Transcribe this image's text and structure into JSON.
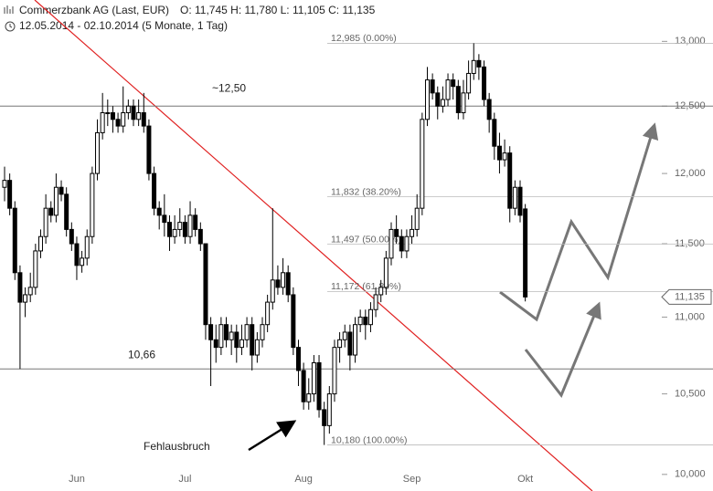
{
  "chart_data": {
    "type": "candlestick",
    "title": "Commerzbank AG (Last, EUR)",
    "quote": "O: 11,745  H: 11,780  L: 11,105  C: 11,135",
    "subtitle": "12.05.2014 - 02.10.2014 (5 Monate, 1 Tag)",
    "log_scale": true,
    "ylim": [
      9.9,
      13.33
    ],
    "yticks": [
      {
        "value": 10,
        "label": "10,000"
      },
      {
        "value": 10.5,
        "label": "10,500"
      },
      {
        "value": 11,
        "label": "11,000"
      },
      {
        "value": 11.5,
        "label": "11,500"
      },
      {
        "value": 12,
        "label": "12,000"
      },
      {
        "value": 12.5,
        "label": "12,500"
      },
      {
        "value": 13,
        "label": "13,000"
      }
    ],
    "categories": [
      null,
      null,
      null,
      null,
      null,
      null,
      null,
      null,
      null,
      null,
      null,
      null,
      null,
      null,
      "Jun",
      null,
      null,
      null,
      null,
      null,
      null,
      null,
      null,
      null,
      null,
      null,
      null,
      null,
      null,
      null,
      null,
      null,
      null,
      null,
      null,
      "Jul",
      null,
      null,
      null,
      null,
      null,
      null,
      null,
      null,
      null,
      null,
      null,
      null,
      null,
      null,
      null,
      null,
      null,
      null,
      null,
      null,
      null,
      null,
      "Aug",
      null,
      null,
      null,
      null,
      null,
      null,
      null,
      null,
      null,
      null,
      null,
      null,
      null,
      null,
      null,
      null,
      null,
      null,
      null,
      null,
      "Sep",
      null,
      null,
      null,
      null,
      null,
      null,
      null,
      null,
      null,
      null,
      null,
      null,
      null,
      null,
      null,
      null,
      null,
      null,
      null,
      null,
      null,
      "Okt"
    ],
    "open": [
      11.9,
      11.95,
      11.75,
      11.3,
      11.1,
      11.15,
      11.2,
      11.45,
      11.55,
      11.75,
      11.7,
      11.9,
      11.85,
      11.6,
      11.5,
      11.35,
      11.4,
      11.55,
      12.0,
      12.3,
      12.45,
      12.45,
      12.4,
      12.35,
      12.45,
      12.5,
      12.4,
      12.45,
      12.35,
      12.0,
      11.75,
      11.7,
      11.65,
      11.55,
      11.6,
      11.65,
      11.55,
      11.7,
      11.6,
      11.5,
      10.95,
      10.85,
      10.8,
      10.95,
      10.85,
      10.9,
      10.8,
      10.85,
      10.95,
      10.75,
      10.85,
      10.95,
      11.1,
      11.25,
      11.2,
      11.3,
      11.15,
      10.8,
      10.65,
      10.45,
      10.5,
      10.7,
      10.4,
      10.3,
      10.5,
      10.8,
      10.85,
      10.9,
      10.75,
      10.95,
      11.0,
      10.95,
      11.05,
      11.15,
      11.2,
      11.4,
      11.6,
      11.55,
      11.45,
      11.55,
      11.6,
      11.75,
      12.4,
      12.7,
      12.6,
      12.5,
      12.55,
      12.7,
      12.65,
      12.45,
      12.6,
      12.75,
      12.85,
      12.8,
      12.55,
      12.4,
      12.2,
      12.1,
      12.15,
      11.75,
      11.9,
      11.745
    ],
    "high": [
      12.05,
      12.0,
      11.8,
      11.35,
      11.2,
      11.3,
      11.5,
      11.6,
      11.85,
      11.8,
      12.0,
      11.95,
      11.9,
      11.65,
      11.55,
      11.45,
      11.6,
      12.05,
      12.4,
      12.6,
      12.55,
      12.5,
      12.45,
      12.65,
      12.55,
      12.55,
      12.55,
      12.6,
      12.4,
      12.05,
      11.8,
      11.85,
      11.7,
      11.7,
      11.75,
      11.7,
      11.8,
      11.75,
      11.65,
      11.5,
      11.0,
      10.95,
      11.0,
      11.0,
      10.95,
      10.95,
      10.95,
      11.0,
      11.0,
      10.9,
      11.0,
      11.15,
      11.75,
      11.35,
      11.4,
      11.35,
      11.2,
      10.85,
      10.7,
      10.6,
      10.75,
      10.75,
      10.45,
      10.55,
      10.85,
      10.9,
      10.95,
      10.95,
      11.0,
      11.05,
      11.05,
      11.1,
      11.2,
      11.25,
      11.45,
      11.65,
      11.7,
      11.6,
      11.6,
      11.7,
      11.85,
      12.45,
      12.8,
      12.75,
      12.65,
      12.65,
      12.75,
      12.75,
      12.7,
      12.7,
      12.85,
      12.985,
      12.9,
      12.85,
      12.6,
      12.45,
      12.3,
      12.25,
      12.2,
      11.95,
      11.95,
      11.78
    ],
    "low": [
      11.8,
      11.7,
      11.25,
      10.66,
      11.0,
      11.1,
      11.15,
      11.4,
      11.5,
      11.65,
      11.65,
      11.8,
      11.55,
      11.45,
      11.25,
      11.3,
      11.35,
      11.5,
      11.95,
      12.25,
      12.35,
      12.3,
      12.3,
      12.3,
      12.4,
      12.35,
      12.35,
      12.3,
      11.95,
      11.7,
      11.6,
      11.55,
      11.45,
      11.5,
      11.55,
      11.5,
      11.5,
      11.55,
      11.45,
      10.85,
      10.55,
      10.7,
      10.75,
      10.8,
      10.75,
      10.7,
      10.75,
      10.8,
      10.65,
      10.7,
      10.8,
      10.9,
      11.05,
      11.15,
      11.15,
      11.1,
      10.75,
      10.55,
      10.4,
      10.4,
      10.45,
      10.35,
      10.18,
      10.25,
      10.45,
      10.7,
      10.8,
      10.65,
      10.7,
      10.9,
      10.85,
      10.9,
      11.0,
      11.1,
      11.15,
      11.35,
      11.5,
      11.4,
      11.4,
      11.5,
      11.55,
      11.7,
      12.35,
      12.55,
      12.4,
      12.45,
      12.5,
      12.55,
      12.4,
      12.4,
      12.55,
      12.7,
      12.7,
      12.5,
      12.3,
      12.1,
      12.0,
      12.05,
      11.65,
      11.7,
      11.65,
      11.105
    ],
    "close": [
      11.95,
      11.75,
      11.3,
      11.1,
      11.15,
      11.2,
      11.45,
      11.55,
      11.75,
      11.7,
      11.9,
      11.85,
      11.6,
      11.5,
      11.35,
      11.4,
      11.55,
      12.0,
      12.3,
      12.45,
      12.45,
      12.4,
      12.35,
      12.45,
      12.5,
      12.4,
      12.45,
      12.35,
      12.0,
      11.75,
      11.7,
      11.65,
      11.55,
      11.6,
      11.65,
      11.55,
      11.7,
      11.6,
      11.5,
      10.95,
      10.85,
      10.8,
      10.95,
      10.85,
      10.9,
      10.8,
      10.85,
      10.95,
      10.75,
      10.85,
      10.95,
      11.1,
      11.25,
      11.2,
      11.3,
      11.15,
      10.8,
      10.65,
      10.45,
      10.5,
      10.7,
      10.4,
      10.3,
      10.5,
      10.8,
      10.85,
      10.9,
      10.75,
      10.95,
      11.0,
      10.95,
      11.05,
      11.15,
      11.2,
      11.4,
      11.6,
      11.55,
      11.45,
      11.55,
      11.6,
      11.75,
      12.4,
      12.7,
      12.6,
      12.5,
      12.55,
      12.7,
      12.65,
      12.45,
      12.6,
      12.75,
      12.85,
      12.8,
      12.55,
      12.4,
      12.2,
      12.1,
      12.15,
      11.75,
      11.9,
      11.7,
      11.135
    ],
    "fib_levels": [
      {
        "value": 12.985,
        "label": "12,985 (0.00%)"
      },
      {
        "value": 11.832,
        "label": "11,832 (38.20%)"
      },
      {
        "value": 11.497,
        "label": "11,497 (50.00%)"
      },
      {
        "value": 11.172,
        "label": "11,172 (61.80%)"
      },
      {
        "value": 10.18,
        "label": "10,180 (100.00%)"
      }
    ],
    "levels": [
      {
        "value": 12.5,
        "label": "~12,50"
      },
      {
        "value": 10.66,
        "label": "10,66"
      }
    ],
    "last_price": {
      "value": 11.135,
      "label": "11,135"
    },
    "annotation": "Fehlausbruch"
  }
}
